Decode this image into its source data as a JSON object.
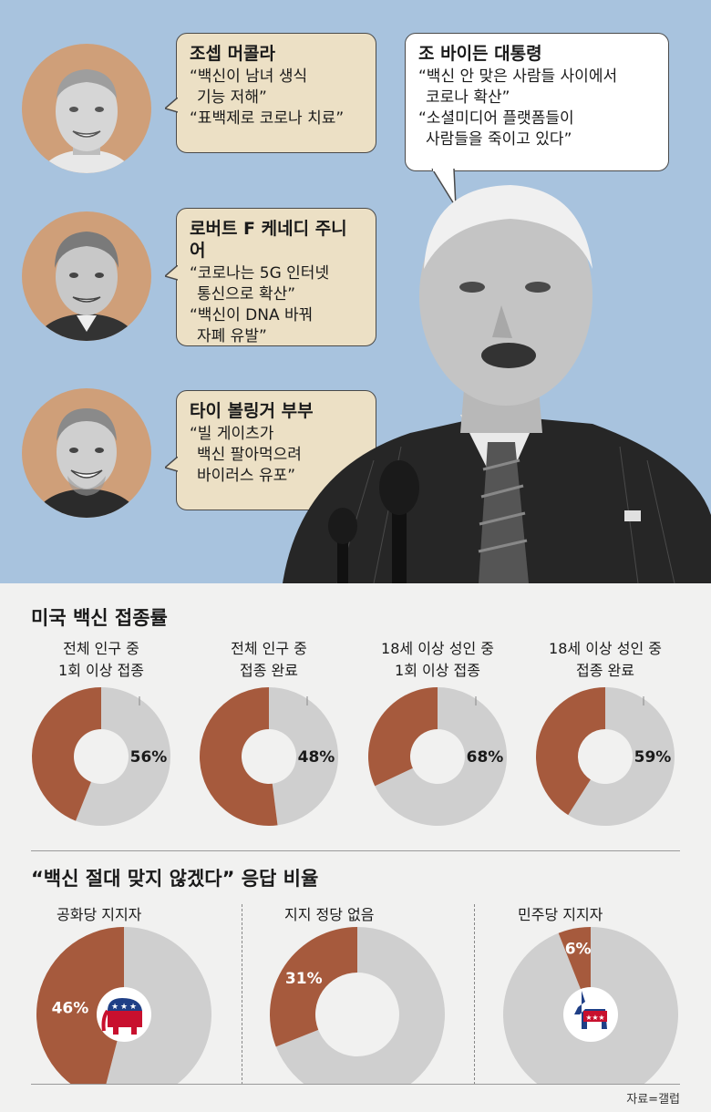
{
  "quotes": {
    "malcolm": {
      "name": "조셉 머콜라",
      "lines": [
        "“백신이 남녀 생식",
        "기능 저해”",
        "“표백제로 코로나 치료”"
      ]
    },
    "kennedy": {
      "name": "로버트 F 케네디 주니어",
      "lines": [
        "“코로나는 5G 인터넷",
        "통신으로 확산”",
        "“백신이 DNA 바꿔",
        "자폐 유발”"
      ]
    },
    "bollinger": {
      "name": "타이 볼링거 부부",
      "lines": [
        "“빌 게이츠가",
        "백신 팔아먹으려",
        "바이러스 유포”"
      ]
    },
    "biden": {
      "name": "조 바이든 대통령",
      "lines": [
        "“백신 안 맞은 사람들 사이에서",
        "코로나 확산”",
        "“소셜미디어 플랫폼들이",
        "사람들을 죽이고 있다”"
      ]
    }
  },
  "vaccination": {
    "title": "미국 백신 접종률",
    "charts": [
      {
        "label1": "전체 인구 중",
        "label2": "1회 이상 접종",
        "value": 56,
        "text": "56%"
      },
      {
        "label1": "전체 인구 중",
        "label2": "접종 완료",
        "value": 48,
        "text": "48%"
      },
      {
        "label1": "18세 이상 성인 중",
        "label2": "1회 이상 접종",
        "value": 68,
        "text": "68%"
      },
      {
        "label1": "18세 이상 성인 중",
        "label2": "접종 완료",
        "value": 59,
        "text": "59%"
      }
    ]
  },
  "refusal": {
    "title": "“백신 절대 맞지 않겠다” 응답 비율",
    "charts": [
      {
        "label": "공화당 지지자",
        "value": 46,
        "text": "46%"
      },
      {
        "label": "지지 정당 없음",
        "value": 31,
        "text": "31%"
      },
      {
        "label": "민주당 지지자",
        "value": 6,
        "text": "6%"
      }
    ]
  },
  "source": "자료=갤럽",
  "colors": {
    "brown": "#a65a3d",
    "gray": "#cfcfcf",
    "sky": "#a8c3de",
    "tan": "#cf9f79",
    "bubble": "#ece0c5"
  },
  "chart_data": [
    {
      "type": "pie",
      "title": "미국 백신 접종률",
      "series": [
        {
          "name": "전체 인구 중 1회 이상 접종",
          "values": [
            56
          ]
        },
        {
          "name": "전체 인구 중 접종 완료",
          "values": [
            48
          ]
        },
        {
          "name": "18세 이상 성인 중 1회 이상 접종",
          "values": [
            68
          ]
        },
        {
          "name": "18세 이상 성인 중 접종 완료",
          "values": [
            59
          ]
        }
      ]
    },
    {
      "type": "pie",
      "title": "“백신 절대 맞지 않겠다” 응답 비율",
      "categories": [
        "공화당 지지자",
        "지지 정당 없음",
        "민주당 지지자"
      ],
      "values": [
        46,
        31,
        6
      ]
    }
  ]
}
